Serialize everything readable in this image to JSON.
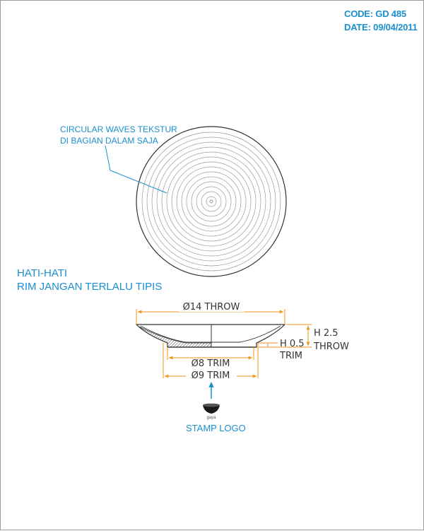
{
  "header": {
    "code": "CODE: GD 485",
    "date": "DATE: 09/04/2011"
  },
  "notes": {
    "texture_line1": "CIRCULAR WAVES TEKSTUR",
    "texture_line2": "DI BAGIAN DALAM SAJA",
    "warning_line1": "HATI-HATI",
    "warning_line2": "RIM JANGAN TERLALU TIPIS"
  },
  "dimensions": {
    "throw_diameter": "Ø14 THROW",
    "trim8": "Ø8 TRIM",
    "trim9": "Ø9 TRIM",
    "height_throw_1": "H 2.5",
    "height_throw_2": "THROW",
    "height_trim_1": "H 0.5",
    "height_trim_2": "TRIM"
  },
  "stamp": {
    "mark": "gaya",
    "label": "STAMP LOGO"
  },
  "colors": {
    "annotation": "#1a8fd0",
    "dimension": "#f0961e",
    "outline": "#333333"
  }
}
